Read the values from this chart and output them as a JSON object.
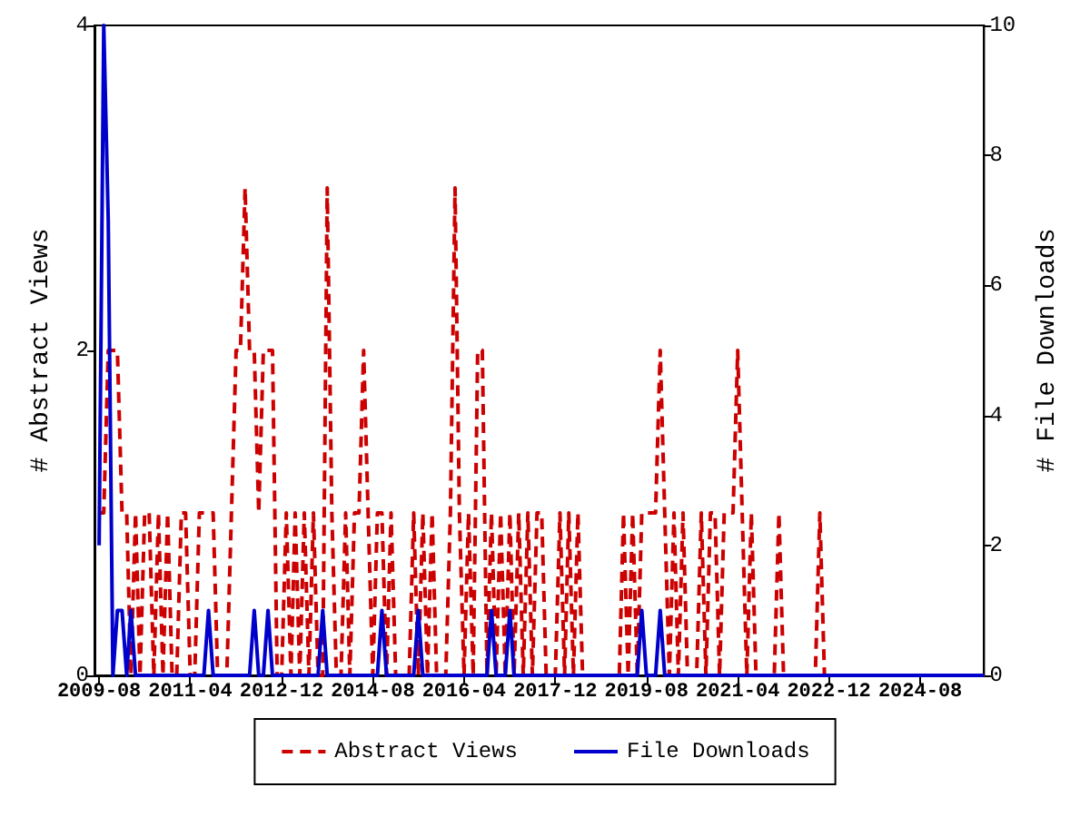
{
  "chart_data": {
    "type": "line",
    "xlabel": null,
    "ylabel": "# Abstract Views",
    "y2label": "# File Downloads",
    "xlim": [
      "2009-07",
      "2025-10"
    ],
    "xticks": [
      "2009-08",
      "2011-04",
      "2012-12",
      "2014-08",
      "2016-04",
      "2017-12",
      "2019-08",
      "2021-04",
      "2022-12",
      "2024-08"
    ],
    "ylim": [
      0,
      4
    ],
    "yticks": [
      0,
      2,
      4
    ],
    "y2lim": [
      0,
      10
    ],
    "y2ticks": [
      0,
      2,
      4,
      6,
      8,
      10
    ],
    "grid": false,
    "legend": "bottom",
    "marker": "none",
    "series": [
      {
        "name": "Abstract Views",
        "color": "#cc0000",
        "line_style": "dashed",
        "x": [
          "2009-08",
          "2009-09",
          "2009-10",
          "2009-11",
          "2009-12",
          "2010-01",
          "2010-02",
          "2010-03",
          "2010-04",
          "2010-05",
          "2010-06",
          "2010-07",
          "2010-08",
          "2010-09",
          "2010-10",
          "2010-11",
          "2010-12",
          "2011-01",
          "2011-02",
          "2011-03",
          "2011-04",
          "2011-05",
          "2011-06",
          "2011-07",
          "2011-08",
          "2011-09",
          "2011-10",
          "2011-12",
          "2012-01",
          "2012-02",
          "2012-03",
          "2012-04",
          "2012-05",
          "2012-06",
          "2012-07",
          "2012-08",
          "2012-09",
          "2012-10",
          "2012-11",
          "2012-12",
          "2013-01",
          "2013-02",
          "2013-03",
          "2013-04",
          "2013-05",
          "2013-06",
          "2013-07",
          "2013-08",
          "2013-09",
          "2013-10",
          "2013-11",
          "2013-12",
          "2014-01",
          "2014-02",
          "2014-03",
          "2014-04",
          "2014-05",
          "2014-06",
          "2014-07",
          "2014-08",
          "2014-09",
          "2014-10",
          "2014-11",
          "2014-12",
          "2015-01",
          "2015-04",
          "2015-05",
          "2015-06",
          "2015-07",
          "2015-08",
          "2015-09",
          "2015-10",
          "2015-12",
          "2016-01",
          "2016-02",
          "2016-03",
          "2016-04",
          "2016-05",
          "2016-06",
          "2016-07",
          "2016-08",
          "2016-09",
          "2016-10",
          "2016-11",
          "2016-12",
          "2017-01",
          "2017-02",
          "2017-03",
          "2017-04",
          "2017-05",
          "2017-06",
          "2017-07",
          "2017-08",
          "2017-09",
          "2017-10",
          "2017-12",
          "2018-01",
          "2018-02",
          "2018-03",
          "2018-04",
          "2018-05",
          "2018-06",
          "2019-02",
          "2019-03",
          "2019-04",
          "2019-05",
          "2019-06",
          "2019-07",
          "2019-08",
          "2019-09",
          "2019-10",
          "2019-11",
          "2019-12",
          "2020-01",
          "2020-02",
          "2020-03",
          "2020-04",
          "2020-05",
          "2020-07",
          "2020-08",
          "2020-09",
          "2020-10",
          "2020-11",
          "2020-12",
          "2021-01",
          "2021-02",
          "2021-03",
          "2021-04",
          "2021-05",
          "2021-06",
          "2021-07",
          "2021-08",
          "2021-12",
          "2022-01",
          "2022-02",
          "2022-09",
          "2022-10",
          "2022-11",
          "2025-10"
        ],
        "values": [
          1,
          1,
          2,
          2,
          2,
          1,
          1,
          0,
          1,
          0,
          1,
          1,
          0,
          1,
          0,
          1,
          0,
          0,
          1,
          1,
          0,
          0,
          1,
          1,
          1,
          1,
          0,
          0,
          1,
          2,
          2,
          3,
          2,
          2,
          1,
          2,
          2,
          2,
          0,
          0,
          1,
          0,
          1,
          0,
          1,
          0,
          1,
          0,
          0,
          3,
          1,
          0,
          0,
          1,
          0,
          1,
          1,
          2,
          1,
          0,
          1,
          1,
          0,
          1,
          0,
          0,
          1,
          0,
          1,
          0,
          1,
          0,
          0,
          1,
          3,
          1,
          0,
          1,
          0,
          2,
          2,
          0,
          1,
          0,
          1,
          0,
          1,
          0,
          1,
          0,
          1,
          0,
          1,
          1,
          0,
          0,
          1,
          0,
          1,
          0,
          1,
          0,
          0,
          1,
          0,
          1,
          0,
          1,
          1,
          1,
          1,
          2,
          1,
          0,
          1,
          0,
          1,
          0,
          0,
          1,
          0,
          1,
          1,
          0,
          1,
          1,
          1,
          2,
          1,
          0,
          1,
          0,
          0,
          1,
          0,
          0,
          1,
          0,
          0
        ]
      },
      {
        "name": "File Downloads",
        "color": "#0000cc",
        "line_style": "solid",
        "axis": "y2",
        "x": [
          "2009-08",
          "2009-09",
          "2009-10",
          "2009-11",
          "2009-12",
          "2010-01",
          "2010-02",
          "2010-03",
          "2010-04",
          "2011-07",
          "2011-08",
          "2011-09",
          "2012-05",
          "2012-06",
          "2012-07",
          "2012-08",
          "2012-09",
          "2012-10",
          "2013-08",
          "2013-09",
          "2013-10",
          "2014-09",
          "2014-10",
          "2014-11",
          "2015-05",
          "2015-06",
          "2015-07",
          "2016-09",
          "2016-10",
          "2016-11",
          "2017-01",
          "2017-02",
          "2017-03",
          "2019-06",
          "2019-07",
          "2019-08",
          "2019-10",
          "2019-11",
          "2019-12",
          "2025-10"
        ],
        "values": [
          2,
          10,
          7,
          0,
          1,
          1,
          0,
          1,
          0,
          0,
          1,
          0,
          0,
          1,
          0,
          0,
          1,
          0,
          0,
          1,
          0,
          0,
          1,
          0,
          0,
          1,
          0,
          0,
          1,
          0,
          0,
          1,
          0,
          0,
          1,
          0,
          0,
          1,
          0,
          0
        ]
      }
    ]
  }
}
